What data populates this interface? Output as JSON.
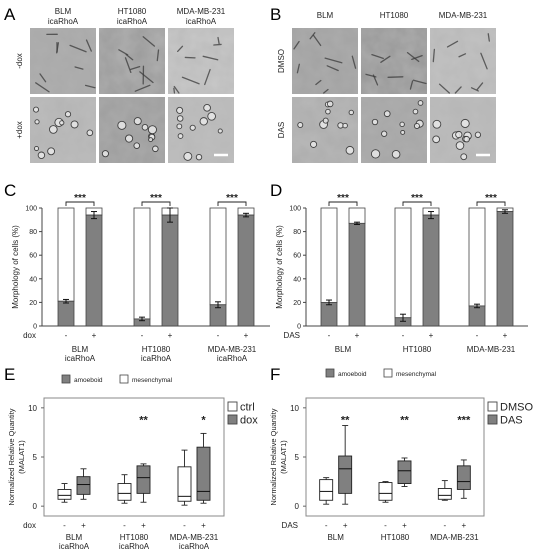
{
  "panels": {
    "A": {
      "letter": "A",
      "col_labels": [
        [
          "BLM",
          "icaRhoA"
        ],
        [
          "HT1080",
          "icaRhoA"
        ],
        [
          "MDA-MB-231",
          "icaRhoA"
        ]
      ],
      "row_labels": [
        "-dox",
        "+dox"
      ]
    },
    "B": {
      "letter": "B",
      "col_labels": [
        [
          "BLM"
        ],
        [
          "HT1080"
        ],
        [
          "MDA-MB-231"
        ]
      ],
      "row_labels": [
        "DMSO",
        "DAS"
      ]
    }
  },
  "chart_data": [
    {
      "panel": "C",
      "type": "bar",
      "ylabel": "Morphology of cells (%)",
      "ylim": [
        0,
        100
      ],
      "yticks": [
        0,
        20,
        40,
        60,
        80,
        100
      ],
      "treatment_label": "dox",
      "condition_ticks": [
        "-",
        "+"
      ],
      "groups": [
        [
          "BLM",
          "icaRhoA"
        ],
        [
          "HT1080",
          "icaRhoA"
        ],
        [
          "MDA-MB-231",
          "icaRhoA"
        ]
      ],
      "series": [
        {
          "name": "amoeboid",
          "color": "#808080",
          "values": [
            21,
            94,
            6,
            94,
            18,
            94
          ],
          "errors": [
            1.5,
            3,
            1.5,
            6,
            2.5,
            1.5
          ]
        },
        {
          "name": "mesenchymal",
          "color": "#ffffff",
          "values": [
            79,
            6,
            94,
            6,
            82,
            6
          ]
        }
      ],
      "significance": [
        "***",
        "***",
        "***"
      ]
    },
    {
      "panel": "D",
      "type": "bar",
      "ylabel": "Morphology of cells (%)",
      "ylim": [
        0,
        100
      ],
      "yticks": [
        0,
        20,
        40,
        60,
        80,
        100
      ],
      "treatment_label": "DAS",
      "condition_ticks": [
        "-",
        "+"
      ],
      "groups": [
        [
          "BLM"
        ],
        [
          "HT1080"
        ],
        [
          "MDA-MB-231"
        ]
      ],
      "series": [
        {
          "name": "amoeboid",
          "color": "#808080",
          "values": [
            20,
            87,
            7,
            94,
            17,
            97
          ],
          "errors": [
            2,
            1,
            3,
            3,
            1.5,
            1.5
          ]
        },
        {
          "name": "mesenchymal",
          "color": "#ffffff",
          "values": [
            80,
            13,
            93,
            6,
            83,
            3
          ]
        }
      ],
      "significance": [
        "***",
        "***",
        "***"
      ]
    },
    {
      "panel": "E",
      "type": "box",
      "ylabel": [
        "Normalized Relative Quantity",
        "(MALAT1)"
      ],
      "ylim": [
        -1,
        11
      ],
      "yticks": [
        0,
        5,
        10
      ],
      "treatment_label": "dox",
      "condition_ticks": [
        "-",
        "+"
      ],
      "groups": [
        [
          "BLM",
          "icaRhoA"
        ],
        [
          "HT1080",
          "icaRhoA"
        ],
        [
          "MDA-MB-231",
          "icaRhoA"
        ]
      ],
      "legend": [
        {
          "name": "ctrl",
          "color": "#ffffff"
        },
        {
          "name": "dox",
          "color": "#808080"
        }
      ],
      "boxes": [
        {
          "min": 0.4,
          "q1": 0.7,
          "median": 1.1,
          "q3": 1.7,
          "max": 2.3,
          "fill": "#ffffff"
        },
        {
          "min": 0.7,
          "q1": 1.2,
          "median": 2.2,
          "q3": 3.0,
          "max": 3.8,
          "fill": "#808080"
        },
        {
          "min": 0.3,
          "q1": 0.6,
          "median": 1.3,
          "q3": 2.3,
          "max": 3.2,
          "fill": "#ffffff"
        },
        {
          "min": 0.4,
          "q1": 1.3,
          "median": 2.9,
          "q3": 4.1,
          "max": 4.3,
          "fill": "#808080"
        },
        {
          "min": 0.1,
          "q1": 0.5,
          "median": 1.0,
          "q3": 4.0,
          "max": 5.7,
          "fill": "#ffffff"
        },
        {
          "min": 0.3,
          "q1": 0.6,
          "median": 1.5,
          "q3": 6.0,
          "max": 7.4,
          "fill": "#808080"
        }
      ],
      "significance": [
        "",
        "**",
        "*"
      ]
    },
    {
      "panel": "F",
      "type": "box",
      "ylabel": [
        "Normalized Relative Quantity",
        "(MALAT1)"
      ],
      "ylim": [
        -1,
        11
      ],
      "yticks": [
        0,
        5,
        10
      ],
      "treatment_label": "DAS",
      "condition_ticks": [
        "-",
        "+"
      ],
      "groups": [
        [
          "BLM"
        ],
        [
          "HT1080"
        ],
        [
          "MDA-MB-231"
        ]
      ],
      "legend": [
        {
          "name": "DMSO",
          "color": "#ffffff"
        },
        {
          "name": "DAS",
          "color": "#808080"
        }
      ],
      "boxes": [
        {
          "min": 0.2,
          "q1": 0.6,
          "median": 1.5,
          "q3": 2.7,
          "max": 2.9,
          "fill": "#ffffff"
        },
        {
          "min": 0.2,
          "q1": 1.3,
          "median": 3.8,
          "q3": 5.1,
          "max": 8.2,
          "fill": "#808080"
        },
        {
          "min": 0.4,
          "q1": 0.6,
          "median": 1.3,
          "q3": 2.4,
          "max": 2.5,
          "fill": "#ffffff"
        },
        {
          "min": 2.0,
          "q1": 2.3,
          "median": 3.6,
          "q3": 4.6,
          "max": 4.9,
          "fill": "#808080"
        },
        {
          "min": 0.6,
          "q1": 0.7,
          "median": 1.1,
          "q3": 1.8,
          "max": 2.6,
          "fill": "#ffffff"
        },
        {
          "min": 0.8,
          "q1": 1.7,
          "median": 2.5,
          "q3": 4.1,
          "max": 4.7,
          "fill": "#808080"
        }
      ],
      "significance": [
        "**",
        "**",
        "***"
      ]
    }
  ]
}
